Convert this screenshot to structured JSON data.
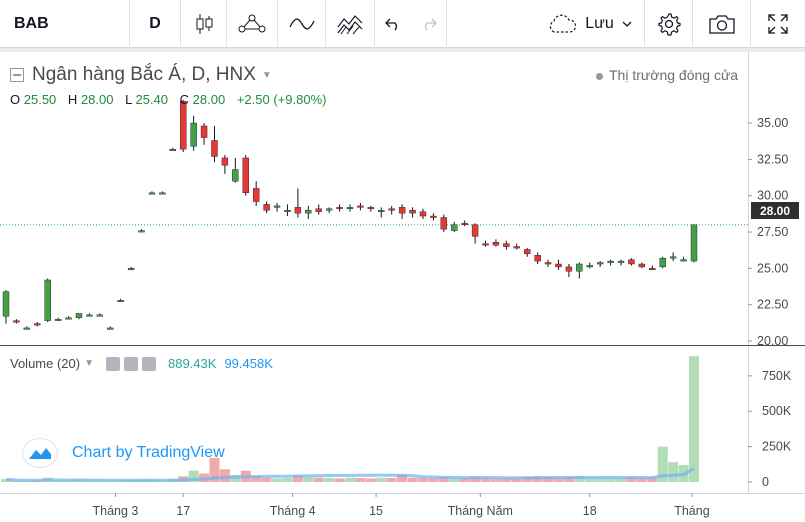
{
  "toolbar": {
    "symbol": "BAB",
    "interval": "D",
    "save_label": "Lưu"
  },
  "legend": {
    "title": "Ngân hàng Bắc Á, D, HNX",
    "o_label": "O",
    "o_value": "25.50",
    "h_label": "H",
    "h_value": "28.00",
    "l_label": "L",
    "l_value": "25.40",
    "c_label": "C",
    "c_value": "28.00",
    "change": "+2.50 (+9.80%)"
  },
  "market_status": "Thị trường đóng cửa",
  "last_price": "28.00",
  "price_axis": [
    "35.00",
    "32.50",
    "30.00",
    "27.50",
    "25.00",
    "22.50",
    "20.00"
  ],
  "volume_legend": {
    "name": "Volume (20)",
    "value1": "889.43K",
    "value2": "99.458K"
  },
  "volume_axis": [
    "750K",
    "500K",
    "250K",
    "0"
  ],
  "time_axis": [
    "Tháng 3",
    "17",
    "Tháng 4",
    "15",
    "Tháng Năm",
    "18",
    "Tháng"
  ],
  "brand": "Chart by TradingView",
  "colors": {
    "up": "#43a047",
    "down": "#e53935",
    "accent": "#2196f3",
    "vol_up": "#a5d6a7",
    "vol_down": "#ef9a9a"
  },
  "chart_data": {
    "type": "candlestick",
    "price_range": [
      20,
      37
    ],
    "volume_range": [
      0,
      900000
    ],
    "candles": [
      [
        21.7,
        23.5,
        21.2,
        23.4,
        20
      ],
      [
        21.4,
        21.5,
        21.2,
        21.3,
        8
      ],
      [
        20.9,
        21.0,
        20.8,
        20.9,
        6
      ],
      [
        21.2,
        21.3,
        21.0,
        21.1,
        10
      ],
      [
        21.4,
        24.3,
        21.3,
        24.2,
        30
      ],
      [
        21.5,
        21.6,
        21.4,
        21.5,
        12
      ],
      [
        21.6,
        21.7,
        21.5,
        21.6,
        10
      ],
      [
        21.6,
        21.9,
        21.5,
        21.9,
        18
      ],
      [
        21.8,
        21.9,
        21.7,
        21.8,
        9
      ],
      [
        21.8,
        21.9,
        21.7,
        21.8,
        8
      ],
      [
        20.9,
        21.0,
        20.8,
        20.9,
        9
      ],
      [
        22.8,
        22.9,
        22.7,
        22.8,
        12
      ],
      [
        25.0,
        25.1,
        24.9,
        25.0,
        14
      ],
      [
        27.6,
        27.7,
        27.5,
        27.6,
        16
      ],
      [
        30.2,
        30.3,
        30.1,
        30.2,
        15
      ],
      [
        30.2,
        30.3,
        30.1,
        30.2,
        12
      ],
      [
        33.2,
        33.3,
        33.1,
        33.2,
        20
      ],
      [
        36.5,
        36.6,
        33.0,
        33.2,
        40
      ],
      [
        33.4,
        35.5,
        33.1,
        35.0,
        80
      ],
      [
        34.8,
        35.0,
        33.5,
        34.0,
        60
      ],
      [
        33.8,
        34.8,
        32.3,
        32.7,
        170
      ],
      [
        32.6,
        32.8,
        31.5,
        32.1,
        90
      ],
      [
        31.0,
        32.6,
        30.9,
        31.8,
        50
      ],
      [
        32.6,
        32.8,
        30.0,
        30.2,
        80
      ],
      [
        30.5,
        31.0,
        29.3,
        29.6,
        45
      ],
      [
        29.4,
        29.6,
        28.8,
        29.0,
        30
      ],
      [
        29.2,
        29.5,
        28.9,
        29.3,
        25
      ],
      [
        29.0,
        29.4,
        28.6,
        29.0,
        28
      ],
      [
        29.2,
        30.5,
        28.5,
        28.8,
        45
      ],
      [
        28.8,
        29.3,
        28.4,
        29.0,
        35
      ],
      [
        29.1,
        29.4,
        28.7,
        28.9,
        30
      ],
      [
        29.0,
        29.2,
        28.8,
        29.1,
        28
      ],
      [
        29.2,
        29.4,
        28.9,
        29.1,
        25
      ],
      [
        29.1,
        29.4,
        28.9,
        29.2,
        30
      ],
      [
        29.3,
        29.5,
        29.0,
        29.2,
        28
      ],
      [
        29.2,
        29.3,
        28.9,
        29.1,
        25
      ],
      [
        29.0,
        29.2,
        28.5,
        29.0,
        30
      ],
      [
        29.1,
        29.3,
        28.7,
        29.0,
        28
      ],
      [
        29.2,
        29.4,
        28.4,
        28.8,
        50
      ],
      [
        29.0,
        29.2,
        28.5,
        28.8,
        30
      ],
      [
        28.9,
        29.1,
        28.4,
        28.6,
        30
      ],
      [
        28.6,
        28.8,
        28.3,
        28.5,
        28
      ],
      [
        28.5,
        28.7,
        27.5,
        27.7,
        35
      ],
      [
        27.6,
        28.2,
        27.5,
        28.0,
        30
      ],
      [
        28.1,
        28.3,
        27.9,
        28.0,
        28
      ],
      [
        28.0,
        28.1,
        26.7,
        27.2,
        40
      ],
      [
        26.7,
        26.9,
        26.5,
        26.6,
        30
      ],
      [
        26.8,
        27.0,
        26.5,
        26.6,
        25
      ],
      [
        26.7,
        26.9,
        26.3,
        26.5,
        28
      ],
      [
        26.5,
        26.7,
        26.3,
        26.4,
        25
      ],
      [
        26.3,
        26.4,
        25.8,
        26.0,
        35
      ],
      [
        25.9,
        26.1,
        25.3,
        25.5,
        40
      ],
      [
        25.4,
        25.6,
        25.1,
        25.3,
        35
      ],
      [
        25.3,
        25.6,
        24.9,
        25.1,
        30
      ],
      [
        25.1,
        25.3,
        24.4,
        24.8,
        35
      ],
      [
        24.8,
        25.4,
        24.3,
        25.3,
        40
      ],
      [
        25.2,
        25.4,
        25.0,
        25.2,
        30
      ],
      [
        25.3,
        25.5,
        25.1,
        25.4,
        32
      ],
      [
        25.4,
        25.6,
        25.2,
        25.5,
        30
      ],
      [
        25.4,
        25.6,
        25.2,
        25.5,
        28
      ],
      [
        25.6,
        25.7,
        25.2,
        25.3,
        35
      ],
      [
        25.3,
        25.4,
        25.0,
        25.1,
        30
      ],
      [
        25.0,
        25.2,
        24.9,
        24.9,
        30
      ],
      [
        25.1,
        25.8,
        25.0,
        25.7,
        250
      ],
      [
        25.7,
        26.1,
        25.5,
        25.8,
        140
      ],
      [
        25.6,
        25.8,
        25.5,
        25.6,
        120
      ],
      [
        25.5,
        28.0,
        25.4,
        28.0,
        889
      ]
    ]
  }
}
